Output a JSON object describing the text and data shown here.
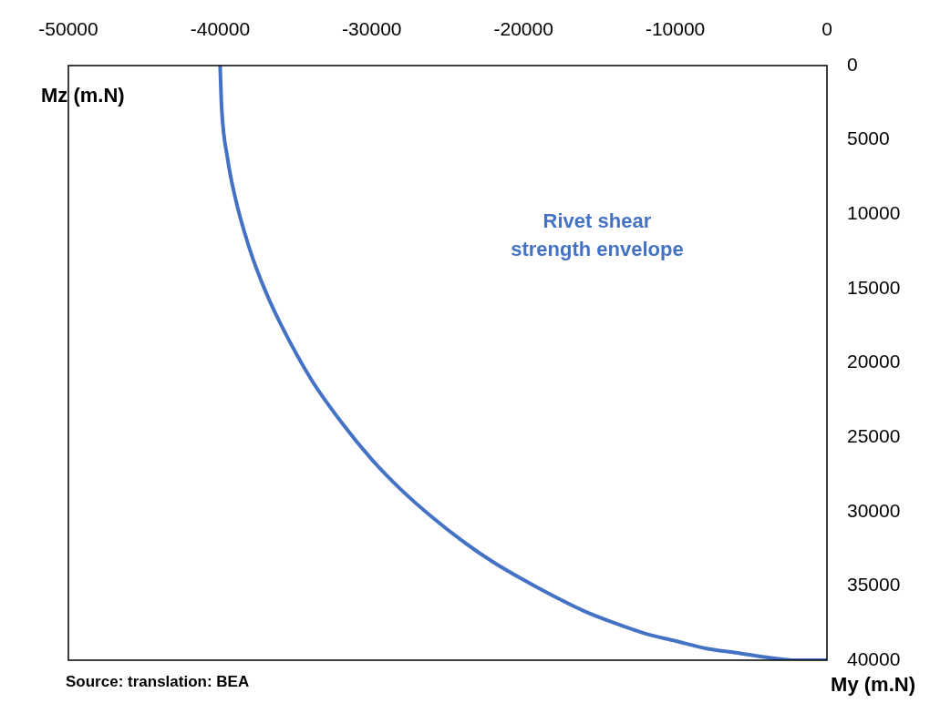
{
  "chart_data": {
    "type": "line",
    "xlabel": "Mz (m.N)",
    "ylabel": "My (m.N)",
    "annotations": [
      "Source: translation: BEA"
    ],
    "x": [
      -40000,
      -39900,
      -39500,
      -39000,
      -38000,
      -37000,
      -36000,
      -34000,
      -32000,
      -30000,
      -28000,
      -26000,
      -24000,
      -22000,
      -20000,
      -18000,
      -16000,
      -14000,
      -12000,
      -10000,
      -8000,
      -6000,
      -4000,
      -2000,
      0
    ],
    "series": [
      {
        "name": "Rivet shear strength envelope",
        "color": "#4472c4",
        "values": [
          0,
          2800,
          6300,
          8900,
          12500,
          15200,
          17400,
          21100,
          24000,
          26500,
          28600,
          30400,
          32000,
          33400,
          34600,
          35700,
          36700,
          37500,
          38200,
          38700,
          39200,
          39500,
          39800,
          40000,
          40000
        ]
      }
    ],
    "xlim": [
      -50000,
      0
    ],
    "xticks": [
      -50000,
      -40000,
      -30000,
      -20000,
      -10000,
      0
    ],
    "ylim": [
      40000,
      0
    ],
    "yticks": [
      0,
      5000,
      10000,
      15000,
      20000,
      25000,
      30000,
      35000,
      40000
    ],
    "grid": false,
    "legend": false,
    "marker": "none",
    "line_style": "solid"
  }
}
